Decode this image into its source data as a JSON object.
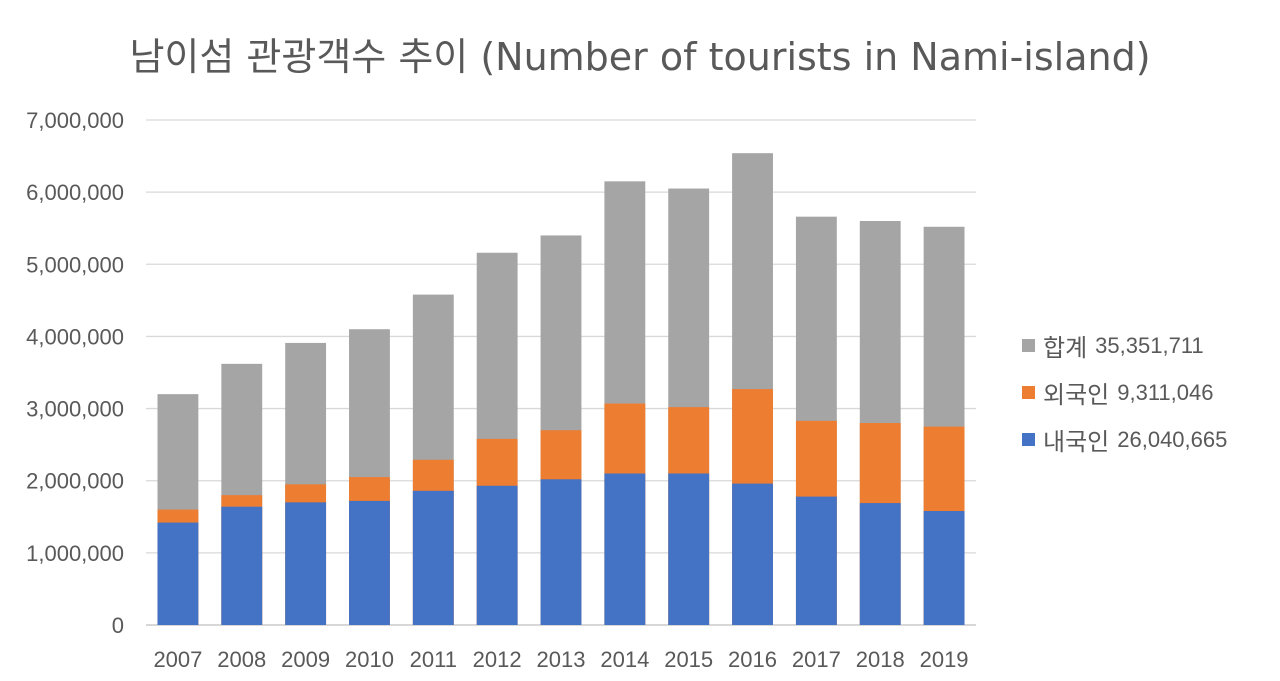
{
  "chart_data": {
    "type": "bar",
    "stacking": "overlay",
    "title": "남이섬 관광객수 추이 (Number of tourists in Nami-island)",
    "categories": [
      "2007",
      "2008",
      "2009",
      "2010",
      "2011",
      "2012",
      "2013",
      "2014",
      "2015",
      "2016",
      "2017",
      "2018",
      "2019"
    ],
    "ylim": [
      0,
      7000000
    ],
    "yticks": [
      0,
      1000000,
      2000000,
      3000000,
      4000000,
      5000000,
      6000000,
      7000000
    ],
    "ytick_labels": [
      "0",
      "1,000,000",
      "2,000,000",
      "3,000,000",
      "4,000,000",
      "5,000,000",
      "6,000,000",
      "7,000,000"
    ],
    "grid": true,
    "legend_position": "right",
    "series": [
      {
        "name": "합계",
        "total_label": "35,351,711",
        "color": "#A5A5A5",
        "values": [
          3200000,
          3620000,
          3910000,
          4100000,
          4580000,
          5160000,
          5400000,
          6150000,
          6050000,
          6540000,
          5660000,
          5600000,
          5520000
        ]
      },
      {
        "name": "외국인",
        "total_label": "9,311,046",
        "color": "#ED7D31",
        "values": [
          1600000,
          1800000,
          1950000,
          2050000,
          2290000,
          2580000,
          2700000,
          3070000,
          3020000,
          3270000,
          2830000,
          2800000,
          2750000
        ]
      },
      {
        "name": "내국인",
        "total_label": "26,040,665",
        "color": "#4472C4",
        "values": [
          1420000,
          1640000,
          1700000,
          1720000,
          1860000,
          1930000,
          2020000,
          2100000,
          2100000,
          1960000,
          1780000,
          1690000,
          1580000
        ]
      }
    ]
  }
}
